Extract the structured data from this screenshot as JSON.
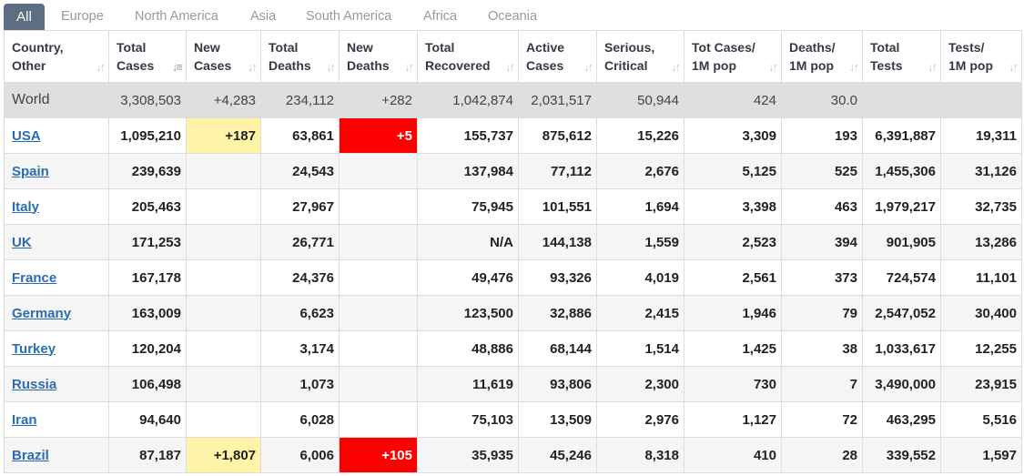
{
  "tabs": [
    "All",
    "Europe",
    "North America",
    "Asia",
    "South America",
    "Africa",
    "Oceania"
  ],
  "active_tab": "All",
  "columns": [
    [
      "Country,",
      "Other"
    ],
    [
      "Total",
      "Cases"
    ],
    [
      "New",
      "Cases"
    ],
    [
      "Total",
      "Deaths"
    ],
    [
      "New",
      "Deaths"
    ],
    [
      "Total",
      "Recovered"
    ],
    [
      "Active",
      "Cases"
    ],
    [
      "Serious,",
      "Critical"
    ],
    [
      "Tot Cases/",
      "1M pop"
    ],
    [
      "Deaths/",
      "1M pop"
    ],
    [
      "Total",
      "Tests"
    ],
    [
      "Tests/",
      "1M pop"
    ]
  ],
  "sort_icon": "sort-arrows-icon",
  "world_row": [
    "World",
    "3,308,503",
    "+4,283",
    "234,112",
    "+282",
    "1,042,874",
    "2,031,517",
    "50,944",
    "424",
    "30.0",
    "",
    ""
  ],
  "rows": [
    [
      "USA",
      "1,095,210",
      "+187",
      "63,861",
      "+5",
      "155,737",
      "875,612",
      "15,226",
      "3,309",
      "193",
      "6,391,887",
      "19,311"
    ],
    [
      "Spain",
      "239,639",
      "",
      "24,543",
      "",
      "137,984",
      "77,112",
      "2,676",
      "5,125",
      "525",
      "1,455,306",
      "31,126"
    ],
    [
      "Italy",
      "205,463",
      "",
      "27,967",
      "",
      "75,945",
      "101,551",
      "1,694",
      "3,398",
      "463",
      "1,979,217",
      "32,735"
    ],
    [
      "UK",
      "171,253",
      "",
      "26,771",
      "",
      "N/A",
      "144,138",
      "1,559",
      "2,523",
      "394",
      "901,905",
      "13,286"
    ],
    [
      "France",
      "167,178",
      "",
      "24,376",
      "",
      "49,476",
      "93,326",
      "4,019",
      "2,561",
      "373",
      "724,574",
      "11,101"
    ],
    [
      "Germany",
      "163,009",
      "",
      "6,623",
      "",
      "123,500",
      "32,886",
      "2,415",
      "1,946",
      "79",
      "2,547,052",
      "30,400"
    ],
    [
      "Turkey",
      "120,204",
      "",
      "3,174",
      "",
      "48,886",
      "68,144",
      "1,514",
      "1,425",
      "38",
      "1,033,617",
      "12,255"
    ],
    [
      "Russia",
      "106,498",
      "",
      "1,073",
      "",
      "11,619",
      "93,806",
      "2,300",
      "730",
      "7",
      "3,490,000",
      "23,915"
    ],
    [
      "Iran",
      "94,640",
      "",
      "6,028",
      "",
      "75,103",
      "13,509",
      "2,976",
      "1,127",
      "72",
      "463,295",
      "5,516"
    ],
    [
      "Brazil",
      "87,187",
      "+1,807",
      "6,006",
      "+105",
      "35,935",
      "45,246",
      "8,318",
      "410",
      "28",
      "339,552",
      "1,597"
    ]
  ],
  "colors": {
    "new_cases_highlight": "#fff3a7",
    "new_deaths_highlight": "#ff0000",
    "active_tab": "#5d6e82",
    "link": "#2b6cb3"
  }
}
